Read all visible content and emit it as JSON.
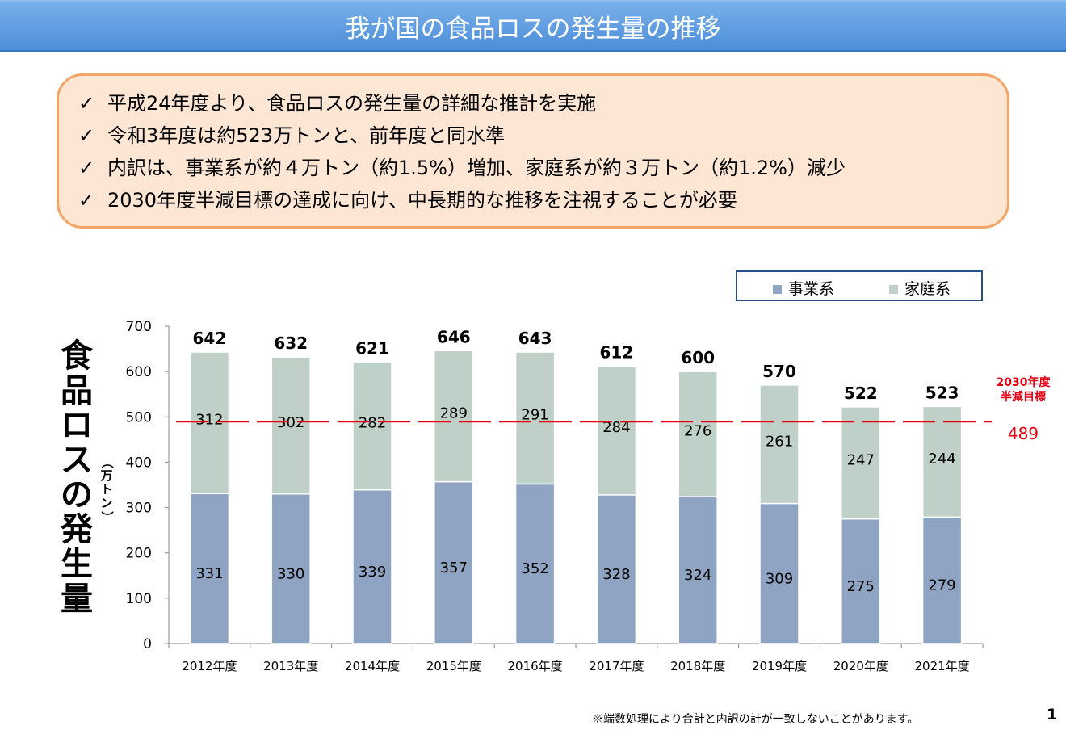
{
  "title": "我が国の食品ロスの発生量の推移",
  "summary": [
    "平成24年度より、食品ロスの発生量の詳細な推計を実施",
    "令和3年度は約523万トンと、前年度と同水準",
    "内訳は、事業系が約４万トン（約1.5%）増加、家庭系が約３万トン（約1.2%）減少",
    "2030年度半減目標の達成に向け、中長期的な推移を注視することが必要"
  ],
  "check_glyph": "✓",
  "colors": {
    "business": "#8ea4c2",
    "household": "#bfd0c8",
    "target": "#e60012",
    "accent": "#5a95dd"
  },
  "chart_data": {
    "type": "bar",
    "stacked": true,
    "categories": [
      "2012年度",
      "2013年度",
      "2014年度",
      "2015年度",
      "2016年度",
      "2017年度",
      "2018年度",
      "2019年度",
      "2020年度",
      "2021年度"
    ],
    "series": [
      {
        "name": "事業系",
        "values": [
          331,
          330,
          339,
          357,
          352,
          328,
          324,
          309,
          275,
          279
        ]
      },
      {
        "name": "家庭系",
        "values": [
          312,
          302,
          282,
          289,
          291,
          284,
          276,
          261,
          247,
          244
        ]
      }
    ],
    "totals": [
      642,
      632,
      621,
      646,
      643,
      612,
      600,
      570,
      522,
      523
    ],
    "ylabel": "食品ロスの発生量",
    "yunit": "（万トン）",
    "ylim": [
      0,
      700
    ],
    "yticks": [
      0,
      100,
      200,
      300,
      400,
      500,
      600,
      700
    ],
    "target": {
      "label_line1": "2030年度",
      "label_line2": "半減目標",
      "value": 489,
      "display": "489"
    },
    "legend_position": "top-right"
  },
  "footnote": "※端数処理により合計と内訳の計が一致しないことがあります。",
  "page_number": "1"
}
